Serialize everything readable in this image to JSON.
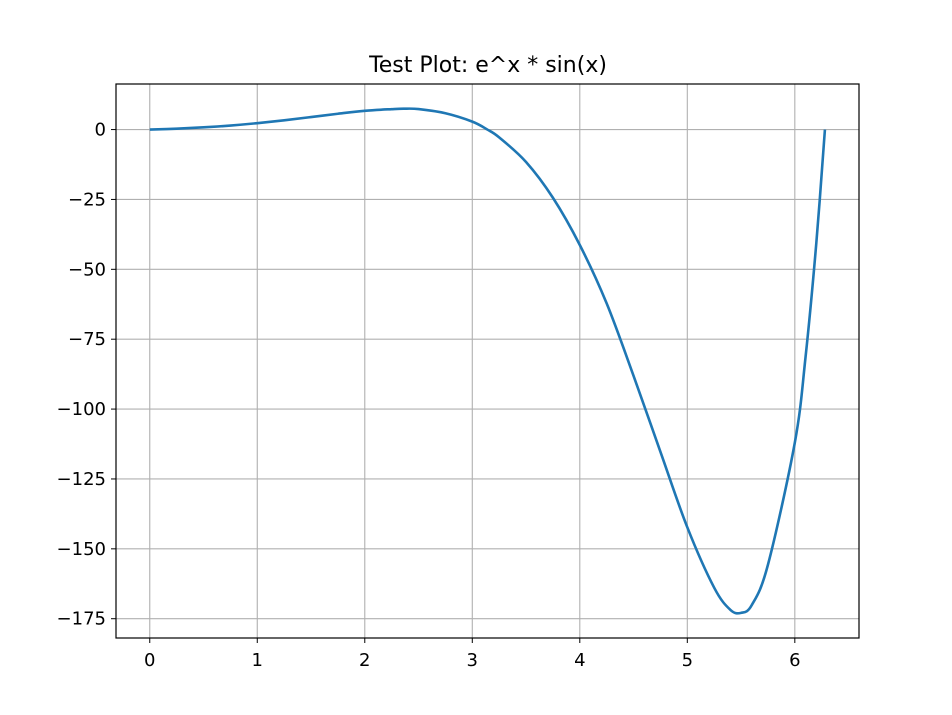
{
  "chart_data": {
    "type": "line",
    "title": "Test Plot: e^x * sin(x)",
    "xlabel": "",
    "ylabel": "",
    "xlim": [
      -0.314,
      6.597
    ],
    "ylim": [
      -181.9,
      16.3
    ],
    "x_ticks": [
      0,
      1,
      2,
      3,
      4,
      5,
      6
    ],
    "y_ticks": [
      0,
      -25,
      -50,
      -75,
      -100,
      -125,
      -150,
      -175
    ],
    "x_tick_labels": [
      "0",
      "1",
      "2",
      "3",
      "4",
      "5",
      "6"
    ],
    "y_tick_labels": [
      "0",
      "−25",
      "−50",
      "−75",
      "−100",
      "−125",
      "−150",
      "−175"
    ],
    "grid": true,
    "series": [
      {
        "color": "#1f77b4",
        "x": [
          0,
          0.25,
          0.5,
          0.75,
          1.0,
          1.25,
          1.5,
          1.75,
          2.0,
          2.25,
          2.36,
          2.5,
          2.75,
          3.0,
          3.14,
          3.25,
          3.5,
          3.75,
          4.0,
          4.25,
          4.5,
          4.75,
          5.0,
          5.25,
          5.4,
          5.5,
          5.6,
          5.75,
          6.0,
          6.1,
          6.2,
          6.28
        ],
        "y": [
          0,
          0.32,
          0.79,
          1.44,
          2.29,
          3.32,
          4.47,
          5.66,
          6.72,
          7.3,
          7.46,
          7.33,
          5.84,
          2.84,
          0,
          -2.8,
          -11.6,
          -24.4,
          -41.3,
          -62.2,
          -88.1,
          -115.3,
          -142.3,
          -163.9,
          -171.8,
          -172.9,
          -170.1,
          -155.7,
          -112.0,
          -81.3,
          -40.6,
          0
        ]
      }
    ]
  }
}
